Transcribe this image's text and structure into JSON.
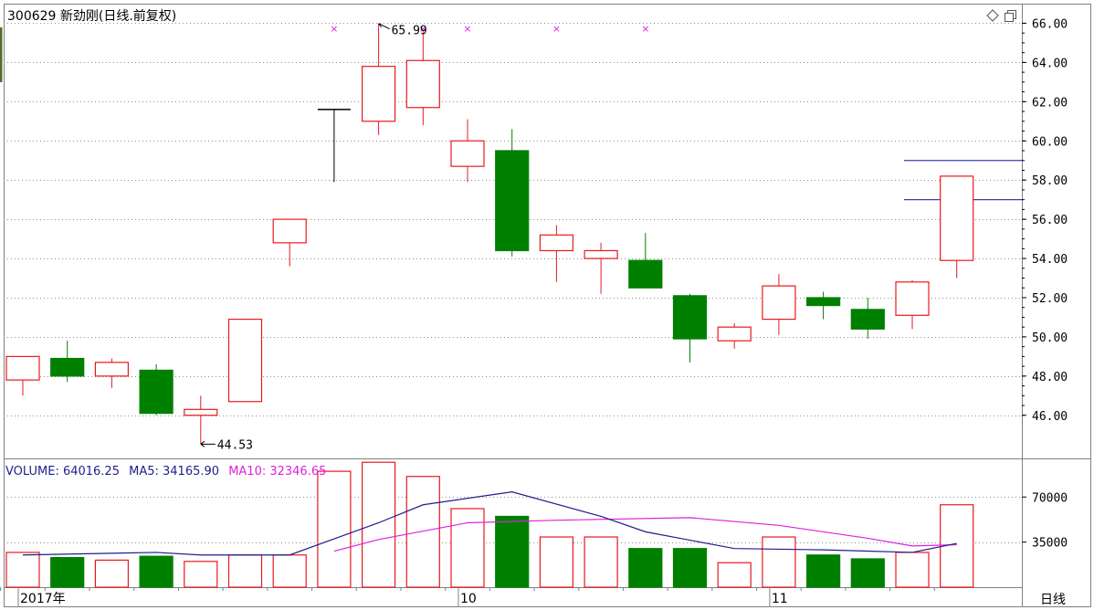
{
  "header": {
    "title": "300629 新劲刚(日线.前复权)"
  },
  "volume_header": {
    "volume_label": "VOLUME: 64016.25",
    "ma5_label": "MA5: 34165.90",
    "ma10_label": "MA10: 32346.65"
  },
  "period_label": "日线",
  "colors": {
    "up": "#e8191f",
    "down": "#008000",
    "grid": "#909090",
    "ma5": "#1e1e8c",
    "ma10": "#e020e0",
    "marker": "#e020e0",
    "hline": "#3c3cb4"
  },
  "icons": [
    "diamond-icon",
    "restore-icon"
  ],
  "chart_data": {
    "type": "candlestick",
    "title": "300629 新劲刚(日线.前复权)",
    "price_ticks": [
      "66.00",
      "64.00",
      "62.00",
      "60.00",
      "58.00",
      "56.00",
      "54.00",
      "52.00",
      "50.00",
      "48.00",
      "46.00"
    ],
    "price_range": [
      43.8,
      67.0
    ],
    "volume_ticks": [
      "70000",
      "35000"
    ],
    "volume_range": [
      0,
      100000
    ],
    "x_labels": [
      {
        "text": "2017年",
        "index": 0
      },
      {
        "text": "10",
        "index": 10
      },
      {
        "text": "11",
        "index": 17
      }
    ],
    "candles": [
      {
        "o": 47.8,
        "h": 49.0,
        "l": 47.0,
        "c": 49.0,
        "v": 27000
      },
      {
        "o": 48.9,
        "h": 49.8,
        "l": 47.7,
        "c": 48.0,
        "v": 23000
      },
      {
        "o": 48.0,
        "h": 48.9,
        "l": 47.4,
        "c": 48.7,
        "v": 21000
      },
      {
        "o": 48.3,
        "h": 48.6,
        "l": 46.0,
        "c": 46.1,
        "v": 24000
      },
      {
        "o": 46.0,
        "h": 47.0,
        "l": 44.53,
        "c": 46.3,
        "v": 20000
      },
      {
        "o": 46.7,
        "h": 50.9,
        "l": 46.7,
        "c": 50.9,
        "v": 25000
      },
      {
        "o": 54.8,
        "h": 56.0,
        "l": 53.6,
        "c": 56.0,
        "v": 25000
      },
      {
        "o": 61.6,
        "h": 61.6,
        "l": 57.9,
        "c": 61.6,
        "v": 90000
      },
      {
        "o": 61.0,
        "h": 65.99,
        "l": 60.3,
        "c": 63.8,
        "v": 97000
      },
      {
        "o": 61.7,
        "h": 65.6,
        "l": 60.8,
        "c": 64.1,
        "v": 86000
      },
      {
        "o": 58.7,
        "h": 61.1,
        "l": 57.9,
        "c": 60.0,
        "v": 61000
      },
      {
        "o": 59.5,
        "h": 60.6,
        "l": 54.1,
        "c": 54.4,
        "v": 55000
      },
      {
        "o": 54.4,
        "h": 55.7,
        "l": 52.8,
        "c": 55.2,
        "v": 39000
      },
      {
        "o": 54.0,
        "h": 54.8,
        "l": 52.2,
        "c": 54.4,
        "v": 39000
      },
      {
        "o": 53.9,
        "h": 55.3,
        "l": 52.5,
        "c": 52.5,
        "v": 30000
      },
      {
        "o": 52.1,
        "h": 52.2,
        "l": 48.7,
        "c": 49.9,
        "v": 30000
      },
      {
        "o": 49.8,
        "h": 50.7,
        "l": 49.4,
        "c": 50.5,
        "v": 19000
      },
      {
        "o": 50.9,
        "h": 53.2,
        "l": 50.1,
        "c": 52.6,
        "v": 39000
      },
      {
        "o": 52.0,
        "h": 52.3,
        "l": 50.9,
        "c": 51.6,
        "v": 25000
      },
      {
        "o": 51.4,
        "h": 52.0,
        "l": 49.9,
        "c": 50.4,
        "v": 22000
      },
      {
        "o": 51.1,
        "h": 52.9,
        "l": 50.4,
        "c": 52.8,
        "v": 27000
      },
      {
        "o": 53.9,
        "h": 58.2,
        "l": 53.0,
        "c": 58.2,
        "v": 64000
      }
    ],
    "ma5": [
      {
        "i": 0,
        "v": 25000
      },
      {
        "i": 3,
        "v": 27000
      },
      {
        "i": 4,
        "v": 25000
      },
      {
        "i": 6,
        "v": 25000
      },
      {
        "i": 8,
        "v": 50000
      },
      {
        "i": 9,
        "v": 64000
      },
      {
        "i": 11,
        "v": 74000
      },
      {
        "i": 13,
        "v": 55000
      },
      {
        "i": 14,
        "v": 43000
      },
      {
        "i": 16,
        "v": 30000
      },
      {
        "i": 18,
        "v": 29000
      },
      {
        "i": 19,
        "v": 28000
      },
      {
        "i": 20,
        "v": 27000
      },
      {
        "i": 21,
        "v": 34000
      }
    ],
    "ma10": [
      {
        "i": 7,
        "v": 28000
      },
      {
        "i": 8,
        "v": 37000
      },
      {
        "i": 10,
        "v": 50000
      },
      {
        "i": 12,
        "v": 52000
      },
      {
        "i": 15,
        "v": 54000
      },
      {
        "i": 17,
        "v": 48000
      },
      {
        "i": 19,
        "v": 38000
      },
      {
        "i": 20,
        "v": 32000
      },
      {
        "i": 21,
        "v": 33000
      }
    ],
    "annotations": [
      {
        "text": "65.99",
        "index": 8,
        "price": 65.99,
        "side": "high"
      },
      {
        "text": "44.53",
        "index": 4,
        "price": 44.53,
        "side": "low"
      }
    ],
    "markers": [
      7,
      9,
      10,
      12,
      14
    ],
    "hlines": [
      59.0,
      57.0
    ]
  }
}
